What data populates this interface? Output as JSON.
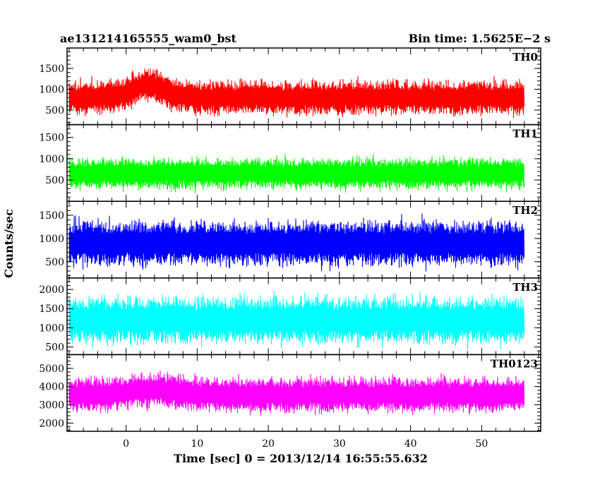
{
  "chart_data": {
    "type": "line",
    "title_left": "ae131214165555_wam0_bst",
    "title_right": "Bin time: 1.5625E−2 s",
    "xlabel": "Time [sec] 0 = 2013/12/14 16:55:55.632",
    "ylabel": "Counts/sec",
    "xlim": [
      -8.3,
      58.3
    ],
    "xticks": [
      0,
      10,
      20,
      30,
      40,
      50
    ],
    "panels": [
      {
        "name": "TH0",
        "color": "#ff0000",
        "ylim": [
          150,
          1990
        ],
        "yticks": [
          500,
          1000,
          1500
        ],
        "data_range": [
          -8,
          56
        ],
        "baseline": 800,
        "spread": 280,
        "burst": {
          "center": 3,
          "width": 3,
          "amp": 300
        }
      },
      {
        "name": "TH1",
        "color": "#00ff00",
        "ylim": [
          0,
          1800
        ],
        "yticks": [
          500,
          1000,
          1500
        ],
        "data_range": [
          -8,
          56
        ],
        "baseline": 650,
        "spread": 250,
        "burst": null
      },
      {
        "name": "TH2",
        "color": "#0000ff",
        "ylim": [
          150,
          1800
        ],
        "yticks": [
          500,
          1000,
          1500
        ],
        "data_range": [
          -8,
          56
        ],
        "baseline": 900,
        "spread": 330,
        "burst": null
      },
      {
        "name": "TH3",
        "color": "#00ffff",
        "ylim": [
          300,
          2300
        ],
        "yticks": [
          500,
          1000,
          1500,
          2000
        ],
        "data_range": [
          -8,
          56
        ],
        "baseline": 1200,
        "spread": 420,
        "burst": null
      },
      {
        "name": "TH0123",
        "color": "#ff00ff",
        "ylim": [
          1550,
          5750
        ],
        "yticks": [
          2000,
          3000,
          4000,
          5000
        ],
        "data_range": [
          -8,
          56
        ],
        "baseline": 3550,
        "spread": 650,
        "burst": {
          "center": 4,
          "width": 4,
          "amp": 300
        }
      }
    ]
  }
}
